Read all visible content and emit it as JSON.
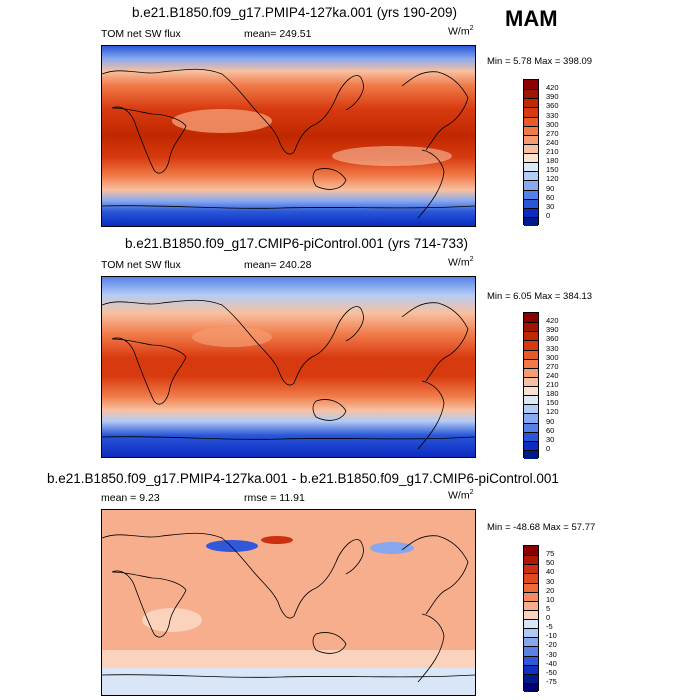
{
  "season": "MAM",
  "panels": [
    {
      "title": "b.e21.B1850.f09_g17.PMIP4-127ka.001 (yrs 190-209)",
      "left": "TOM net SW flux",
      "center": "mean= 249.51",
      "units_base": "W/m",
      "units_exp": "2",
      "minmax": "Min =   5.78 Max = 398.09",
      "colorbar_labels": [
        "420",
        "390",
        "360",
        "330",
        "300",
        "270",
        "240",
        "210",
        "180",
        "150",
        "120",
        "90",
        "60",
        "30",
        "0"
      ]
    },
    {
      "title": "b.e21.B1850.f09_g17.CMIP6-piControl.001 (yrs 714-733)",
      "left": "TOM net SW flux",
      "center": "mean= 240.28",
      "units_base": "W/m",
      "units_exp": "2",
      "minmax": "Min =   6.05 Max = 384.13",
      "colorbar_labels": [
        "420",
        "390",
        "360",
        "330",
        "300",
        "270",
        "240",
        "210",
        "180",
        "150",
        "120",
        "90",
        "60",
        "30",
        "0"
      ]
    },
    {
      "title": "b.e21.B1850.f09_g17.PMIP4-127ka.001 - b.e21.B1850.f09_g17.CMIP6-piControl.001",
      "left": "mean =   9.23",
      "center": "rmse =  11.91",
      "units_base": "W/m",
      "units_exp": "2",
      "minmax": "Min = -48.68 Max =  57.77",
      "colorbar_labels": [
        "75",
        "50",
        "40",
        "30",
        "20",
        "10",
        "5",
        "0",
        "-5",
        "-10",
        "-20",
        "-30",
        "-40",
        "-50",
        "-75"
      ]
    }
  ],
  "colors": {
    "abs_scale": [
      "#8b0000",
      "#a01500",
      "#c02800",
      "#d83a10",
      "#e85a28",
      "#f07a48",
      "#f59c72",
      "#f8c0a0",
      "#fbe2d0",
      "#dce8f8",
      "#b4cdf4",
      "#88aaf0",
      "#5580e8",
      "#2a56d8",
      "#0a2cc0",
      "#001a8c"
    ],
    "diff_scale": [
      "#8b0000",
      "#b01800",
      "#cc3010",
      "#e04a20",
      "#ec6a3c",
      "#f38c62",
      "#f7ae8c",
      "#fbd2bc",
      "#d9e6f8",
      "#b0c8f4",
      "#86a6ee",
      "#5a82e6",
      "#3058d8",
      "#0f30c0",
      "#001a8c",
      "#000070"
    ]
  }
}
